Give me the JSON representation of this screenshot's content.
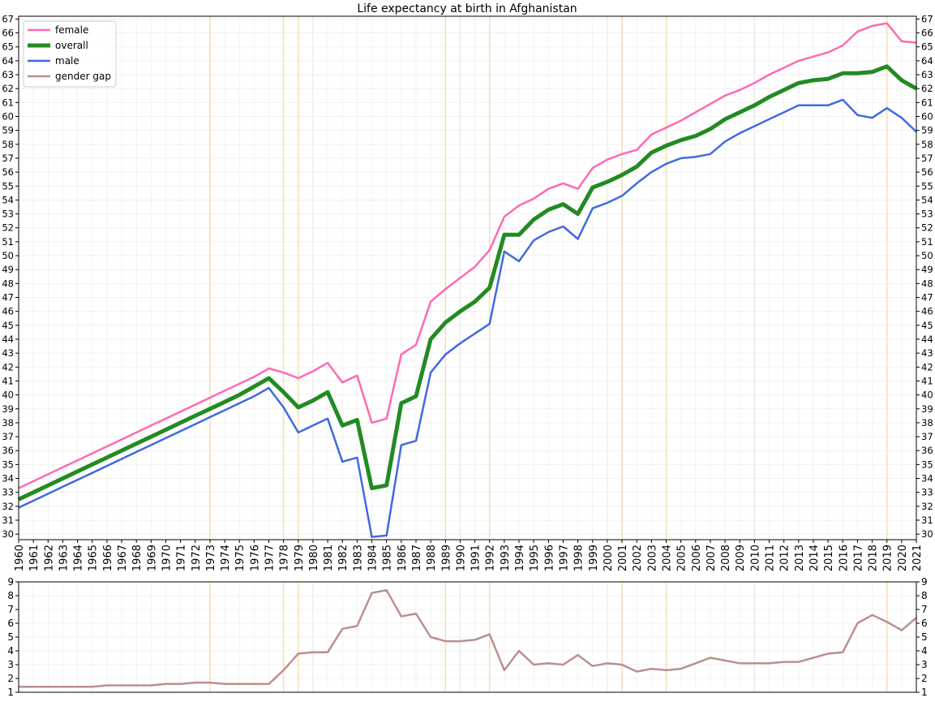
{
  "chart_data": [
    {
      "type": "line",
      "title": "Life expectancy at birth in Afghanistan",
      "xlabel": "",
      "ylabel": "",
      "xlim": [
        1960,
        2021
      ],
      "ylim": [
        29.6,
        67.2
      ],
      "grid": true,
      "legend_position": "top-left",
      "x_tick_labels": [
        "1960",
        "1961",
        "1962",
        "1963",
        "1964",
        "1965",
        "1966",
        "1967",
        "1968",
        "1969",
        "1970",
        "1971",
        "1972",
        "1973",
        "1974",
        "1975",
        "1976",
        "1977",
        "1978",
        "1979",
        "1980",
        "1981",
        "1982",
        "1983",
        "1984",
        "1985",
        "1986",
        "1987",
        "1988",
        "1989",
        "1990",
        "1991",
        "1992",
        "1993",
        "1994",
        "1995",
        "1996",
        "1997",
        "1998",
        "1999",
        "2000",
        "2001",
        "2002",
        "2003",
        "2004",
        "2005",
        "2006",
        "2007",
        "2008",
        "2009",
        "2010",
        "2011",
        "2012",
        "2013",
        "2014",
        "2015",
        "2016",
        "2017",
        "2018",
        "2019",
        "2020",
        "2021"
      ],
      "y_tick_labels": [
        "30",
        "31",
        "32",
        "33",
        "34",
        "35",
        "36",
        "37",
        "38",
        "39",
        "40",
        "41",
        "42",
        "43",
        "44",
        "45",
        "46",
        "47",
        "48",
        "49",
        "50",
        "51",
        "52",
        "53",
        "54",
        "55",
        "56",
        "57",
        "58",
        "59",
        "60",
        "61",
        "62",
        "63",
        "64",
        "65",
        "66",
        "67"
      ],
      "highlight_years": [
        1973,
        1978,
        1979,
        1989,
        1992,
        2001,
        2004,
        2019
      ],
      "highlight_color": "#f5deb3",
      "faint_highlight_years": [
        1980,
        1990,
        2000,
        2010
      ],
      "series": [
        {
          "name": "female",
          "color": "#ff69b4",
          "width": 2.5,
          "values": [
            33.3,
            33.8,
            34.3,
            34.8,
            35.3,
            35.8,
            36.3,
            36.8,
            37.3,
            37.8,
            38.3,
            38.8,
            39.3,
            39.8,
            40.3,
            40.8,
            41.3,
            41.9,
            41.6,
            41.2,
            41.7,
            42.3,
            40.9,
            41.4,
            38.0,
            38.3,
            42.9,
            43.6,
            46.7,
            47.6,
            48.4,
            49.2,
            50.4,
            52.8,
            53.6,
            54.1,
            54.8,
            55.2,
            54.8,
            56.3,
            56.9,
            57.3,
            57.6,
            58.7,
            59.2,
            59.7,
            60.3,
            60.9,
            61.5,
            61.9,
            62.4,
            63.0,
            63.5,
            64.0,
            64.3,
            64.6,
            65.1,
            66.1,
            66.5,
            66.7,
            65.4,
            65.3
          ]
        },
        {
          "name": "overall",
          "color": "#228b22",
          "width": 5,
          "values": [
            32.5,
            33.0,
            33.5,
            34.0,
            34.5,
            35.0,
            35.5,
            36.0,
            36.5,
            37.0,
            37.5,
            38.0,
            38.5,
            39.0,
            39.5,
            40.0,
            40.6,
            41.2,
            40.2,
            39.1,
            39.6,
            40.2,
            37.8,
            38.2,
            33.3,
            33.5,
            39.4,
            39.9,
            44.0,
            45.2,
            46.0,
            46.7,
            47.7,
            51.5,
            51.5,
            52.6,
            53.3,
            53.7,
            53.0,
            54.9,
            55.3,
            55.8,
            56.4,
            57.4,
            57.9,
            58.3,
            58.6,
            59.1,
            59.8,
            60.3,
            60.8,
            61.4,
            61.9,
            62.4,
            62.6,
            62.7,
            63.1,
            63.1,
            63.2,
            63.6,
            62.6,
            62.0
          ]
        },
        {
          "name": "male",
          "color": "#4169e1",
          "width": 2.5,
          "values": [
            31.9,
            32.4,
            32.9,
            33.4,
            33.9,
            34.4,
            34.9,
            35.4,
            35.9,
            36.4,
            36.9,
            37.4,
            37.9,
            38.4,
            38.9,
            39.4,
            39.9,
            40.5,
            39.1,
            37.3,
            37.8,
            38.3,
            35.2,
            35.5,
            29.8,
            29.9,
            36.4,
            36.7,
            41.6,
            42.9,
            43.7,
            44.4,
            45.1,
            50.3,
            49.6,
            51.1,
            51.7,
            52.1,
            51.2,
            53.4,
            53.8,
            54.3,
            55.2,
            56.0,
            56.6,
            57.0,
            57.1,
            57.3,
            58.2,
            58.8,
            59.3,
            59.8,
            60.3,
            60.8,
            60.8,
            60.8,
            61.2,
            60.1,
            59.9,
            60.6,
            59.9,
            58.9
          ]
        }
      ]
    },
    {
      "type": "line",
      "title": "",
      "xlabel": "",
      "ylabel": "",
      "xlim": [
        1960,
        2021
      ],
      "ylim": [
        1,
        9
      ],
      "grid": true,
      "y_tick_labels": [
        "1",
        "2",
        "3",
        "4",
        "5",
        "6",
        "7",
        "8",
        "9"
      ],
      "series": [
        {
          "name": "gender gap",
          "color": "#bc8f8f",
          "width": 2.5,
          "values": [
            1.4,
            1.4,
            1.4,
            1.4,
            1.4,
            1.4,
            1.5,
            1.5,
            1.5,
            1.5,
            1.6,
            1.6,
            1.7,
            1.7,
            1.6,
            1.6,
            1.6,
            1.6,
            2.6,
            3.8,
            3.9,
            3.9,
            5.6,
            5.8,
            8.2,
            8.4,
            6.5,
            6.7,
            5.0,
            4.7,
            4.7,
            4.8,
            5.2,
            2.6,
            4.0,
            3.0,
            3.1,
            3.0,
            3.7,
            2.9,
            3.1,
            3.0,
            2.5,
            2.7,
            2.6,
            2.7,
            3.1,
            3.5,
            3.3,
            3.1,
            3.1,
            3.1,
            3.2,
            3.2,
            3.5,
            3.8,
            3.9,
            6.0,
            6.6,
            6.1,
            5.5,
            6.4
          ]
        }
      ]
    }
  ]
}
